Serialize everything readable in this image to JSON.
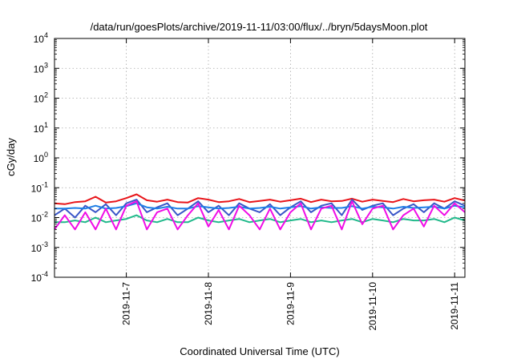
{
  "chart_data": {
    "type": "line",
    "title": "/data/run/goesPlots/archive/2019-11-11/03:00/flux/../bryn/5daysMoon.plot",
    "xlabel": "Coordinated Universal Time (UTC)",
    "ylabel": "cGy/day",
    "yscale": "log",
    "ylim": [
      0.0001,
      10000
    ],
    "xlim": [
      "2019-11-06T03:00",
      "2019-11-11T03:00"
    ],
    "grid": true,
    "y_ticks": [
      {
        "base": "10",
        "exp": "-4",
        "value": 0.0001
      },
      {
        "base": "10",
        "exp": "-3",
        "value": 0.001
      },
      {
        "base": "10",
        "exp": "-2",
        "value": 0.01
      },
      {
        "base": "10",
        "exp": "-1",
        "value": 0.1
      },
      {
        "base": "10",
        "exp": "0",
        "value": 1
      },
      {
        "base": "10",
        "exp": "1",
        "value": 10
      },
      {
        "base": "10",
        "exp": "2",
        "value": 100
      },
      {
        "base": "10",
        "exp": "3",
        "value": 1000
      },
      {
        "base": "10",
        "exp": "4",
        "value": 10000
      }
    ],
    "x_ticks": [
      {
        "label": "2019-11-7",
        "value": "2019-11-07T00:00"
      },
      {
        "label": "2019-11-8",
        "value": "2019-11-08T00:00"
      },
      {
        "label": "2019-11-9",
        "value": "2019-11-09T00:00"
      },
      {
        "label": "2019-11-10",
        "value": "2019-11-10T00:00"
      },
      {
        "label": "2019-11-11",
        "value": "2019-11-11T00:00"
      }
    ],
    "series": [
      {
        "color": "#e8151a",
        "x": [
          "2019-11-06T03:00",
          "2019-11-06T06:00",
          "2019-11-06T09:00",
          "2019-11-06T12:00",
          "2019-11-06T15:00",
          "2019-11-06T18:00",
          "2019-11-06T21:00",
          "2019-11-07T00:00",
          "2019-11-07T03:00",
          "2019-11-07T06:00",
          "2019-11-07T09:00",
          "2019-11-07T12:00",
          "2019-11-07T15:00",
          "2019-11-07T18:00",
          "2019-11-07T21:00",
          "2019-11-08T00:00",
          "2019-11-08T03:00",
          "2019-11-08T06:00",
          "2019-11-08T09:00",
          "2019-11-08T12:00",
          "2019-11-08T15:00",
          "2019-11-08T18:00",
          "2019-11-08T21:00",
          "2019-11-09T00:00",
          "2019-11-09T03:00",
          "2019-11-09T06:00",
          "2019-11-09T09:00",
          "2019-11-09T12:00",
          "2019-11-09T15:00",
          "2019-11-09T18:00",
          "2019-11-09T21:00",
          "2019-11-10T00:00",
          "2019-11-10T03:00",
          "2019-11-10T06:00",
          "2019-11-10T09:00",
          "2019-11-10T12:00",
          "2019-11-10T15:00",
          "2019-11-10T18:00",
          "2019-11-10T21:00",
          "2019-11-11T00:00",
          "2019-11-11T03:00"
        ],
        "values": [
          0.03,
          0.028,
          0.033,
          0.035,
          0.05,
          0.032,
          0.035,
          0.045,
          0.06,
          0.038,
          0.034,
          0.04,
          0.033,
          0.032,
          0.045,
          0.04,
          0.033,
          0.035,
          0.042,
          0.033,
          0.036,
          0.04,
          0.034,
          0.038,
          0.043,
          0.033,
          0.04,
          0.035,
          0.036,
          0.043,
          0.034,
          0.04,
          0.036,
          0.033,
          0.042,
          0.035,
          0.038,
          0.04,
          0.034,
          0.045,
          0.037
        ]
      },
      {
        "color": "#20b98a",
        "x": [
          "2019-11-06T03:00",
          "2019-11-06T06:00",
          "2019-11-06T09:00",
          "2019-11-06T12:00",
          "2019-11-06T15:00",
          "2019-11-06T18:00",
          "2019-11-06T21:00",
          "2019-11-07T00:00",
          "2019-11-07T03:00",
          "2019-11-07T06:00",
          "2019-11-07T09:00",
          "2019-11-07T12:00",
          "2019-11-07T15:00",
          "2019-11-07T18:00",
          "2019-11-07T21:00",
          "2019-11-08T00:00",
          "2019-11-08T03:00",
          "2019-11-08T06:00",
          "2019-11-08T09:00",
          "2019-11-08T12:00",
          "2019-11-08T15:00",
          "2019-11-08T18:00",
          "2019-11-08T21:00",
          "2019-11-09T00:00",
          "2019-11-09T03:00",
          "2019-11-09T06:00",
          "2019-11-09T09:00",
          "2019-11-09T12:00",
          "2019-11-09T15:00",
          "2019-11-09T18:00",
          "2019-11-09T21:00",
          "2019-11-10T00:00",
          "2019-11-10T03:00",
          "2019-11-10T06:00",
          "2019-11-10T09:00",
          "2019-11-10T12:00",
          "2019-11-10T15:00",
          "2019-11-10T18:00",
          "2019-11-10T21:00",
          "2019-11-11T00:00",
          "2019-11-11T03:00"
        ],
        "values": [
          0.007,
          0.007,
          0.008,
          0.007,
          0.01,
          0.007,
          0.008,
          0.009,
          0.012,
          0.008,
          0.007,
          0.009,
          0.007,
          0.007,
          0.01,
          0.008,
          0.007,
          0.008,
          0.009,
          0.007,
          0.008,
          0.009,
          0.007,
          0.008,
          0.009,
          0.007,
          0.008,
          0.007,
          0.008,
          0.009,
          0.007,
          0.009,
          0.008,
          0.007,
          0.009,
          0.008,
          0.008,
          0.009,
          0.007,
          0.01,
          0.008
        ]
      },
      {
        "color": "#3a56c8",
        "x": [
          "2019-11-06T03:00",
          "2019-11-06T06:00",
          "2019-11-06T09:00",
          "2019-11-06T12:00",
          "2019-11-06T15:00",
          "2019-11-06T18:00",
          "2019-11-06T21:00",
          "2019-11-07T00:00",
          "2019-11-07T03:00",
          "2019-11-07T06:00",
          "2019-11-07T09:00",
          "2019-11-07T12:00",
          "2019-11-07T15:00",
          "2019-11-07T18:00",
          "2019-11-07T21:00",
          "2019-11-08T00:00",
          "2019-11-08T03:00",
          "2019-11-08T06:00",
          "2019-11-08T09:00",
          "2019-11-08T12:00",
          "2019-11-08T15:00",
          "2019-11-08T18:00",
          "2019-11-08T21:00",
          "2019-11-09T00:00",
          "2019-11-09T03:00",
          "2019-11-09T06:00",
          "2019-11-09T09:00",
          "2019-11-09T12:00",
          "2019-11-09T15:00",
          "2019-11-09T18:00",
          "2019-11-09T21:00",
          "2019-11-10T00:00",
          "2019-11-10T03:00",
          "2019-11-10T06:00",
          "2019-11-10T09:00",
          "2019-11-10T12:00",
          "2019-11-10T15:00",
          "2019-11-10T18:00",
          "2019-11-10T21:00",
          "2019-11-11T00:00",
          "2019-11-11T03:00"
        ],
        "values": [
          0.012,
          0.02,
          0.01,
          0.025,
          0.015,
          0.028,
          0.012,
          0.03,
          0.04,
          0.015,
          0.022,
          0.03,
          0.012,
          0.02,
          0.035,
          0.015,
          0.025,
          0.012,
          0.03,
          0.02,
          0.015,
          0.028,
          0.012,
          0.022,
          0.035,
          0.015,
          0.025,
          0.03,
          0.012,
          0.04,
          0.018,
          0.025,
          0.03,
          0.012,
          0.02,
          0.028,
          0.015,
          0.03,
          0.02,
          0.035,
          0.025
        ]
      },
      {
        "color": "#1e7fe6",
        "x": [
          "2019-11-06T03:00",
          "2019-11-06T06:00",
          "2019-11-06T09:00",
          "2019-11-06T12:00",
          "2019-11-06T15:00",
          "2019-11-06T18:00",
          "2019-11-06T21:00",
          "2019-11-07T00:00",
          "2019-11-07T03:00",
          "2019-11-07T06:00",
          "2019-11-07T09:00",
          "2019-11-07T12:00",
          "2019-11-07T15:00",
          "2019-11-07T18:00",
          "2019-11-07T21:00",
          "2019-11-08T00:00",
          "2019-11-08T03:00",
          "2019-11-08T06:00",
          "2019-11-08T09:00",
          "2019-11-08T12:00",
          "2019-11-08T15:00",
          "2019-11-08T18:00",
          "2019-11-08T21:00",
          "2019-11-09T00:00",
          "2019-11-09T03:00",
          "2019-11-09T06:00",
          "2019-11-09T09:00",
          "2019-11-09T12:00",
          "2019-11-09T15:00",
          "2019-11-09T18:00",
          "2019-11-09T21:00",
          "2019-11-10T00:00",
          "2019-11-10T03:00",
          "2019-11-10T06:00",
          "2019-11-10T09:00",
          "2019-11-10T12:00",
          "2019-11-10T15:00",
          "2019-11-10T18:00",
          "2019-11-10T21:00",
          "2019-11-11T00:00",
          "2019-11-11T03:00"
        ],
        "values": [
          0.02,
          0.02,
          0.021,
          0.02,
          0.025,
          0.02,
          0.021,
          0.024,
          0.03,
          0.022,
          0.02,
          0.023,
          0.02,
          0.02,
          0.024,
          0.022,
          0.02,
          0.021,
          0.023,
          0.02,
          0.021,
          0.023,
          0.02,
          0.022,
          0.024,
          0.02,
          0.022,
          0.021,
          0.021,
          0.024,
          0.02,
          0.023,
          0.022,
          0.02,
          0.023,
          0.021,
          0.022,
          0.023,
          0.02,
          0.025,
          0.022
        ]
      },
      {
        "color": "#f00de6",
        "x": [
          "2019-11-06T03:00",
          "2019-11-06T06:00",
          "2019-11-06T09:00",
          "2019-11-06T12:00",
          "2019-11-06T15:00",
          "2019-11-06T18:00",
          "2019-11-06T21:00",
          "2019-11-07T00:00",
          "2019-11-07T03:00",
          "2019-11-07T06:00",
          "2019-11-07T09:00",
          "2019-11-07T12:00",
          "2019-11-07T15:00",
          "2019-11-07T18:00",
          "2019-11-07T21:00",
          "2019-11-08T00:00",
          "2019-11-08T03:00",
          "2019-11-08T06:00",
          "2019-11-08T09:00",
          "2019-11-08T12:00",
          "2019-11-08T15:00",
          "2019-11-08T18:00",
          "2019-11-08T21:00",
          "2019-11-09T00:00",
          "2019-11-09T03:00",
          "2019-11-09T06:00",
          "2019-11-09T09:00",
          "2019-11-09T12:00",
          "2019-11-09T15:00",
          "2019-11-09T18:00",
          "2019-11-09T21:00",
          "2019-11-10T00:00",
          "2019-11-10T03:00",
          "2019-11-10T06:00",
          "2019-11-10T09:00",
          "2019-11-10T12:00",
          "2019-11-10T15:00",
          "2019-11-10T18:00",
          "2019-11-10T21:00",
          "2019-11-11T00:00",
          "2019-11-11T03:00"
        ],
        "values": [
          0.004,
          0.012,
          0.004,
          0.015,
          0.004,
          0.02,
          0.004,
          0.025,
          0.035,
          0.004,
          0.015,
          0.02,
          0.004,
          0.012,
          0.03,
          0.005,
          0.018,
          0.004,
          0.025,
          0.012,
          0.004,
          0.02,
          0.004,
          0.015,
          0.03,
          0.004,
          0.02,
          0.025,
          0.004,
          0.035,
          0.006,
          0.02,
          0.025,
          0.004,
          0.012,
          0.02,
          0.005,
          0.025,
          0.012,
          0.03,
          0.015
        ]
      }
    ]
  }
}
